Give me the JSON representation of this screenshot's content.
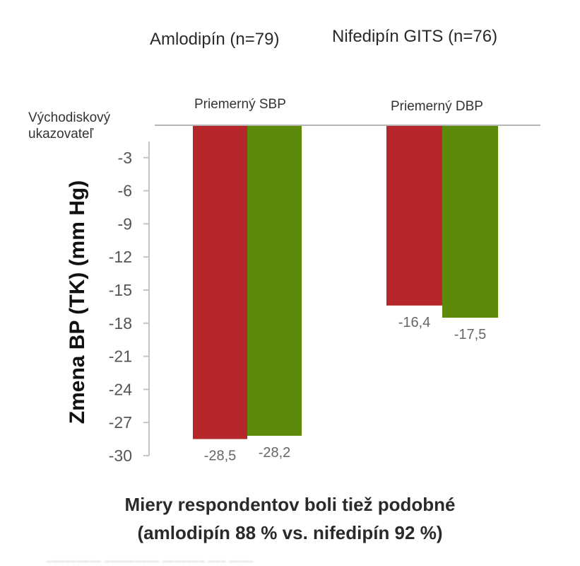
{
  "chart_data": {
    "type": "bar",
    "title": "",
    "legend": {
      "placement": "top",
      "entries": [
        {
          "name": "Amlodipín (n=79)",
          "color": "#b5272b"
        },
        {
          "name": "Nifedipín GITS (n=76)",
          "color": "#5e8a0b"
        }
      ]
    },
    "categories": [
      "Priemerný SBP",
      "Priemerný DBP"
    ],
    "series": [
      {
        "name": "Amlodipín (n=79)",
        "color": "#b5272b",
        "values": [
          -28.5,
          -16.4
        ],
        "labels": [
          "-28,5",
          "-16,4"
        ]
      },
      {
        "name": "Nifedipín GITS (n=76)",
        "color": "#5e8a0b",
        "values": [
          -28.2,
          -17.5
        ],
        "labels": [
          "-28,2",
          "-17,5"
        ]
      }
    ],
    "xlabel": "",
    "ylabel": "Zmena BP (TK) (mm Hg)",
    "baseline_label": [
      "Východiskový",
      "ukazovateľ"
    ],
    "ylim": [
      -30,
      0
    ],
    "yticks": [
      -3,
      -6,
      -9,
      -12,
      -15,
      -18,
      -21,
      -24,
      -27,
      -30
    ],
    "grid": false
  },
  "footnote": {
    "line1": "Miery respondentov boli tiež podobné",
    "line2": "(amlodipín 88 % vs. nifedipín 92 %)"
  }
}
